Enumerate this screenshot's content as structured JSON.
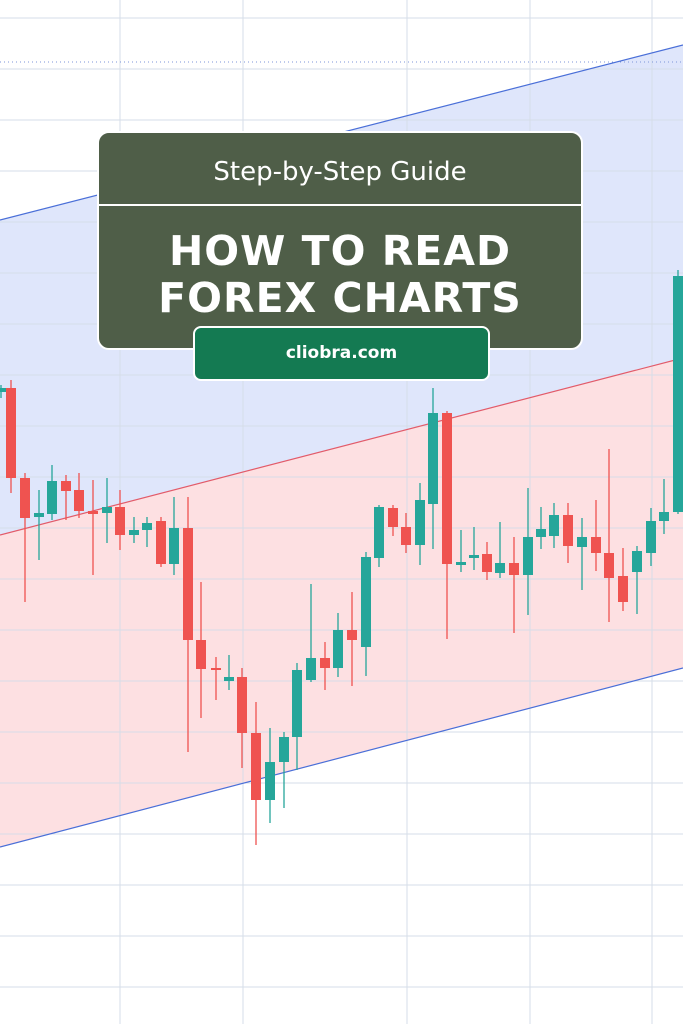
{
  "card": {
    "subtitle": "Step-by-Step Guide",
    "title_line1": "HOW TO READ",
    "title_line2": "FOREX CHARTS"
  },
  "badge": {
    "text": "cliobra.com"
  },
  "colors": {
    "card_bg": "#4f5e48",
    "badge_bg": "#147a52",
    "up_candle": "#26a69a",
    "down_candle": "#ef5350",
    "upper_channel_fill": "#dfe6fb",
    "lower_channel_fill": "#fde0e2",
    "channel_line_blue": "#4a6fd8",
    "channel_line_red": "#e25b6a"
  },
  "chart_data": {
    "type": "candlestick",
    "title": "",
    "xlabel": "",
    "ylabel": "",
    "grid": true,
    "annotations": [
      "ascending channel (blue upper/lower lines)",
      "red midline"
    ]
  }
}
